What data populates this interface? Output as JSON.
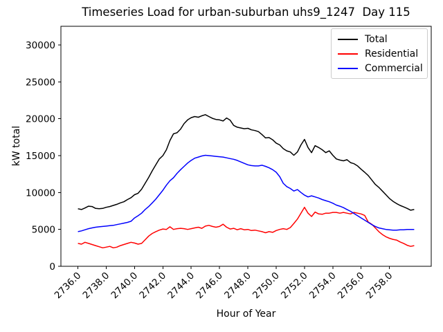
{
  "chart_data": {
    "type": "line",
    "title": "Timeseries Load for urban-suburban uhs9_1247  Day 115",
    "xlabel": "Hour of Year",
    "ylabel": "kW total",
    "grid": false,
    "legend_position": "upper right",
    "xlim": [
      2734.8,
      2760.95
    ],
    "ylim": [
      0,
      32530
    ],
    "x_tick_values": [
      2736,
      2738,
      2740,
      2742,
      2744,
      2746,
      2748,
      2750,
      2752,
      2754,
      2756,
      2758
    ],
    "x_tick_labels": [
      "2736.0",
      "2738.0",
      "2740.0",
      "2742.0",
      "2744.0",
      "2746.0",
      "2748.0",
      "2750.0",
      "2752.0",
      "2754.0",
      "2756.0",
      "2758.0"
    ],
    "y_tick_values": [
      0,
      5000,
      10000,
      15000,
      20000,
      25000,
      30000
    ],
    "y_tick_labels": [
      "0",
      "5000",
      "10000",
      "15000",
      "20000",
      "25000",
      "30000"
    ],
    "x": [
      2736.0,
      2736.25,
      2736.5,
      2736.75,
      2737.0,
      2737.25,
      2737.5,
      2737.75,
      2738.0,
      2738.25,
      2738.5,
      2738.75,
      2739.0,
      2739.25,
      2739.5,
      2739.75,
      2740.0,
      2740.25,
      2740.5,
      2740.75,
      2741.0,
      2741.25,
      2741.5,
      2741.75,
      2742.0,
      2742.25,
      2742.5,
      2742.75,
      2743.0,
      2743.25,
      2743.5,
      2743.75,
      2744.0,
      2744.25,
      2744.5,
      2744.75,
      2745.0,
      2745.25,
      2745.5,
      2745.75,
      2746.0,
      2746.25,
      2746.5,
      2746.75,
      2747.0,
      2747.25,
      2747.5,
      2747.75,
      2748.0,
      2748.25,
      2748.5,
      2748.75,
      2749.0,
      2749.25,
      2749.5,
      2749.75,
      2750.0,
      2750.25,
      2750.5,
      2750.75,
      2751.0,
      2751.25,
      2751.5,
      2751.75,
      2752.0,
      2752.25,
      2752.5,
      2752.75,
      2753.0,
      2753.25,
      2753.5,
      2753.75,
      2754.0,
      2754.25,
      2754.5,
      2754.75,
      2755.0,
      2755.25,
      2755.5,
      2755.75,
      2756.0,
      2756.25,
      2756.5,
      2756.75,
      2757.0,
      2757.25,
      2757.5,
      2757.75,
      2758.0,
      2758.25,
      2758.5,
      2758.75,
      2759.0,
      2759.25,
      2759.5,
      2759.75
    ],
    "series": [
      {
        "name": "Total",
        "color": "#000000",
        "values": [
          7800,
          7700,
          7900,
          8150,
          8100,
          7850,
          7800,
          7850,
          8000,
          8100,
          8250,
          8400,
          8600,
          8750,
          9050,
          9300,
          9700,
          9900,
          10450,
          11250,
          12050,
          12950,
          13750,
          14550,
          15000,
          15800,
          17050,
          17950,
          18100,
          18600,
          19350,
          19850,
          20150,
          20300,
          20200,
          20400,
          20550,
          20300,
          20050,
          19900,
          19850,
          19700,
          20100,
          19800,
          19100,
          18850,
          18750,
          18650,
          18700,
          18500,
          18400,
          18250,
          17850,
          17400,
          17450,
          17150,
          16700,
          16450,
          15950,
          15650,
          15500,
          15050,
          15500,
          16450,
          17200,
          16100,
          15400,
          16350,
          16100,
          15800,
          15400,
          15650,
          15050,
          14550,
          14400,
          14300,
          14450,
          14050,
          13900,
          13600,
          13150,
          12750,
          12300,
          11700,
          11100,
          10700,
          10200,
          9700,
          9200,
          8800,
          8500,
          8250,
          8050,
          7850,
          7600,
          7700
        ]
      },
      {
        "name": "Residential",
        "color": "#ff0000",
        "values": [
          3100,
          3000,
          3250,
          3100,
          2950,
          2800,
          2650,
          2500,
          2600,
          2700,
          2500,
          2600,
          2800,
          2950,
          3100,
          3250,
          3150,
          3000,
          3100,
          3600,
          4100,
          4450,
          4700,
          4900,
          5050,
          5000,
          5350,
          5000,
          5100,
          5150,
          5100,
          5000,
          5100,
          5200,
          5300,
          5150,
          5450,
          5550,
          5400,
          5300,
          5400,
          5700,
          5300,
          5050,
          5150,
          4950,
          5100,
          4950,
          5000,
          4850,
          4900,
          4800,
          4700,
          4550,
          4700,
          4600,
          4850,
          5000,
          5100,
          5000,
          5250,
          5800,
          6400,
          7200,
          8000,
          7200,
          6750,
          7350,
          7100,
          7050,
          7200,
          7200,
          7300,
          7300,
          7200,
          7300,
          7200,
          7100,
          7300,
          7200,
          7100,
          6900,
          6000,
          5700,
          5200,
          4700,
          4300,
          4000,
          3800,
          3650,
          3550,
          3300,
          3100,
          2850,
          2700,
          2800
        ]
      },
      {
        "name": "Commercial",
        "color": "#0000ff",
        "values": [
          4700,
          4800,
          4950,
          5100,
          5200,
          5300,
          5350,
          5400,
          5450,
          5500,
          5550,
          5650,
          5750,
          5850,
          5950,
          6100,
          6550,
          6850,
          7200,
          7700,
          8100,
          8600,
          9100,
          9700,
          10300,
          11000,
          11600,
          12000,
          12600,
          13100,
          13550,
          14000,
          14350,
          14650,
          14800,
          14950,
          15050,
          15000,
          14950,
          14900,
          14850,
          14800,
          14700,
          14600,
          14500,
          14350,
          14150,
          13950,
          13750,
          13650,
          13600,
          13600,
          13700,
          13550,
          13350,
          13100,
          12750,
          12150,
          11250,
          10800,
          10550,
          10200,
          10400,
          10000,
          9650,
          9400,
          9550,
          9400,
          9250,
          9050,
          8900,
          8750,
          8550,
          8300,
          8150,
          7950,
          7700,
          7450,
          7150,
          6850,
          6550,
          6250,
          5950,
          5650,
          5400,
          5200,
          5100,
          5000,
          4950,
          4900,
          4900,
          4950,
          4950,
          5000,
          5000,
          5000
        ]
      }
    ]
  }
}
